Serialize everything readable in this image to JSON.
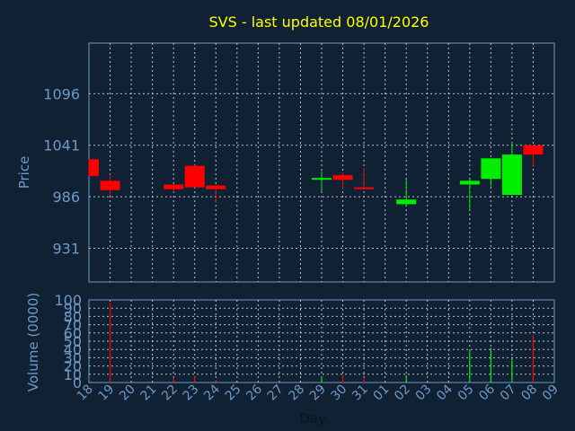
{
  "chart_data": [
    {
      "type": "candlestick",
      "title": "SVS - last updated 08/01/2026",
      "ylabel": "Price",
      "yticks": [
        931,
        986,
        1041,
        1096
      ],
      "ylim": [
        895,
        1150
      ],
      "x": [
        "18",
        "19",
        "20",
        "21",
        "22",
        "23",
        "24",
        "25",
        "26",
        "27",
        "28",
        "29",
        "30",
        "31",
        "01",
        "02",
        "03",
        "04",
        "05",
        "06",
        "07",
        "08",
        "09"
      ],
      "candles": [
        {
          "x": "18",
          "open": 1026,
          "high": 1026,
          "low": 1008,
          "close": 1008,
          "color": "#ff0000"
        },
        {
          "x": "19",
          "open": 1003,
          "high": 1010,
          "low": 987,
          "close": 993,
          "color": "#ff0000"
        },
        {
          "x": "22",
          "open": 999,
          "high": 1000,
          "low": 991,
          "close": 994,
          "color": "#ff0000"
        },
        {
          "x": "23",
          "open": 1019,
          "high": 1020,
          "low": 996,
          "close": 996,
          "color": "#ff0000"
        },
        {
          "x": "24",
          "open": 998,
          "high": 999,
          "low": 980,
          "close": 994,
          "color": "#ff0000"
        },
        {
          "x": "29",
          "open": 1005,
          "high": 1013,
          "low": 992,
          "close": 1006,
          "color": "#00ee00"
        },
        {
          "x": "30",
          "open": 1009,
          "high": 1012,
          "low": 995,
          "close": 1004,
          "color": "#ff0000"
        },
        {
          "x": "31",
          "open": 996,
          "high": 1017,
          "low": 994,
          "close": 995,
          "color": "#ff0000"
        },
        {
          "x": "02",
          "open": 978,
          "high": 1004,
          "low": 977,
          "close": 983,
          "color": "#00ee00"
        },
        {
          "x": "05",
          "open": 999,
          "high": 1005,
          "low": 972,
          "close": 1003,
          "color": "#00ee00"
        },
        {
          "x": "06",
          "open": 1005,
          "high": 1027,
          "low": 997,
          "close": 1027,
          "color": "#00ee00"
        },
        {
          "x": "07",
          "open": 988,
          "high": 1044,
          "low": 988,
          "close": 1031,
          "color": "#00ee00"
        },
        {
          "x": "08",
          "open": 1041,
          "high": 1041,
          "low": 1019,
          "close": 1031,
          "color": "#ff0000"
        }
      ]
    },
    {
      "type": "bar",
      "ylabel": "Volume (0000)",
      "xlabel": "Day",
      "yticks": [
        0,
        10,
        20,
        30,
        40,
        50,
        60,
        70,
        80,
        90,
        100
      ],
      "ylim": [
        0,
        100
      ],
      "categories": [
        "18",
        "19",
        "20",
        "21",
        "22",
        "23",
        "24",
        "25",
        "26",
        "27",
        "28",
        "29",
        "30",
        "31",
        "01",
        "02",
        "03",
        "04",
        "05",
        "06",
        "07",
        "08",
        "09"
      ],
      "values": [
        0,
        96,
        0,
        0,
        6,
        8,
        3,
        0,
        0,
        0,
        0,
        8,
        9,
        6,
        0,
        9,
        0,
        0,
        40,
        42,
        27,
        57,
        0
      ],
      "colors": [
        "#ff0000",
        "#ff0000",
        "#ff0000",
        "#ff0000",
        "#ff0000",
        "#ff0000",
        "#ff0000",
        "#ff0000",
        "#ff0000",
        "#ff0000",
        "#ff0000",
        "#00ee00",
        "#ff0000",
        "#ff0000",
        "#ff0000",
        "#00ee00",
        "#ff0000",
        "#ff0000",
        "#00ee00",
        "#00ee00",
        "#00ee00",
        "#ff0000",
        "#ff0000"
      ]
    }
  ]
}
